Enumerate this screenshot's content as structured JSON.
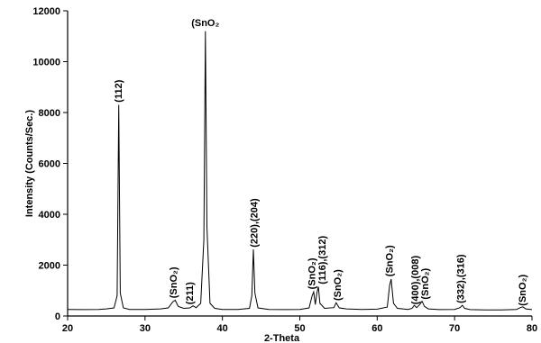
{
  "chart_data": {
    "type": "line",
    "title": "",
    "xlabel": "2-Theta",
    "ylabel": "Intensity (Counts/Sec.)",
    "xlim": [
      20,
      80
    ],
    "ylim": [
      0,
      12000
    ],
    "xticks": [
      20,
      30,
      40,
      50,
      60,
      70,
      80
    ],
    "yticks": [
      0,
      2000,
      4000,
      6000,
      8000,
      10000,
      12000
    ],
    "grid": false,
    "legend": "none",
    "line_color": "#000000",
    "series": [
      {
        "values": [
          [
            20,
            260
          ],
          [
            22,
            250
          ],
          [
            24,
            260
          ],
          [
            25,
            280
          ],
          [
            26,
            320
          ],
          [
            26.4,
            800
          ],
          [
            26.6,
            8300
          ],
          [
            26.8,
            900
          ],
          [
            27.2,
            320
          ],
          [
            28,
            260
          ],
          [
            30,
            260
          ],
          [
            32,
            280
          ],
          [
            33,
            320
          ],
          [
            33.6,
            560
          ],
          [
            33.9,
            620
          ],
          [
            34.3,
            380
          ],
          [
            35,
            300
          ],
          [
            35.8,
            320
          ],
          [
            36.2,
            400
          ],
          [
            36.6,
            330
          ],
          [
            37.2,
            500
          ],
          [
            37.6,
            3000
          ],
          [
            37.8,
            11200
          ],
          [
            38.0,
            3500
          ],
          [
            38.4,
            500
          ],
          [
            39,
            300
          ],
          [
            40,
            260
          ],
          [
            42,
            260
          ],
          [
            43.5,
            300
          ],
          [
            43.8,
            800
          ],
          [
            44.0,
            2620
          ],
          [
            44.2,
            900
          ],
          [
            44.6,
            320
          ],
          [
            46,
            260
          ],
          [
            48,
            250
          ],
          [
            50,
            260
          ],
          [
            51.2,
            320
          ],
          [
            51.6,
            800
          ],
          [
            51.8,
            950
          ],
          [
            52.0,
            450
          ],
          [
            52.2,
            900
          ],
          [
            52.4,
            1150
          ],
          [
            52.6,
            500
          ],
          [
            53.2,
            300
          ],
          [
            54.4,
            330
          ],
          [
            54.7,
            520
          ],
          [
            55.1,
            320
          ],
          [
            56,
            280
          ],
          [
            58,
            260
          ],
          [
            60,
            270
          ],
          [
            61.3,
            350
          ],
          [
            61.6,
            1200
          ],
          [
            61.8,
            1450
          ],
          [
            62.1,
            500
          ],
          [
            62.6,
            300
          ],
          [
            64,
            260
          ],
          [
            64.5,
            300
          ],
          [
            64.8,
            420
          ],
          [
            65.1,
            330
          ],
          [
            65.5,
            450
          ],
          [
            65.8,
            580
          ],
          [
            66.1,
            380
          ],
          [
            66.6,
            280
          ],
          [
            68,
            250
          ],
          [
            70,
            260
          ],
          [
            70.7,
            330
          ],
          [
            71.0,
            420
          ],
          [
            71.3,
            300
          ],
          [
            72,
            250
          ],
          [
            74,
            240
          ],
          [
            76,
            240
          ],
          [
            78,
            260
          ],
          [
            78.5,
            330
          ],
          [
            78.8,
            360
          ],
          [
            79.2,
            280
          ],
          [
            80,
            250
          ]
        ]
      }
    ],
    "annotations": [
      {
        "text": "(112)",
        "x": 27.0,
        "y": 8400
      },
      {
        "text": "(SnO₂",
        "x": 37.8,
        "y": 11400
      },
      {
        "text": "(SnO₂)",
        "x": 34.1,
        "y": 700
      },
      {
        "text": "(211)",
        "x": 36.2,
        "y": 450
      },
      {
        "text": "(220),(204)",
        "x": 44.5,
        "y": 2700
      },
      {
        "text": "(SnO₂)",
        "x": 52.0,
        "y": 1050
      },
      {
        "text": "(116),(312)",
        "x": 53.3,
        "y": 1250
      },
      {
        "text": "(SnO₂)",
        "x": 55.3,
        "y": 600
      },
      {
        "text": "(SnO₂)",
        "x": 62.0,
        "y": 1550
      },
      {
        "text": "(400),(008)",
        "x": 65.3,
        "y": 450
      },
      {
        "text": "(SnO₂)",
        "x": 66.6,
        "y": 650
      },
      {
        "text": "(332),(316)",
        "x": 71.2,
        "y": 500
      },
      {
        "text": "(SnO₂)",
        "x": 79.2,
        "y": 400
      }
    ]
  }
}
